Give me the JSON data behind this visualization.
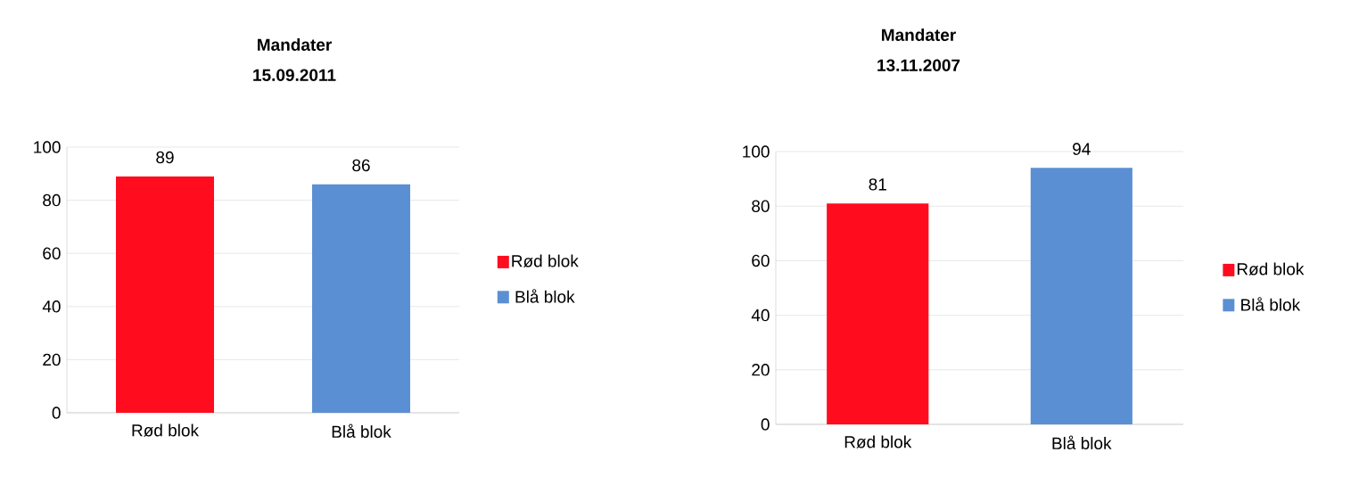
{
  "chart_data": [
    {
      "type": "bar",
      "title": "Mandater",
      "subtitle": "15.09.2011",
      "categories": [
        "Rød blok",
        "Blå blok"
      ],
      "series": [
        {
          "name": "Rød blok",
          "color": "#ff0d1f",
          "values": [
            89,
            null
          ]
        },
        {
          "name": "Blå blok",
          "color": "#5b8fd3",
          "values": [
            null,
            86
          ]
        }
      ],
      "ylim": [
        0,
        100
      ],
      "yticks": [
        0,
        20,
        40,
        60,
        80,
        100
      ],
      "grid": "y",
      "legend": "right",
      "data_labels": true
    },
    {
      "type": "bar",
      "title": "Mandater",
      "subtitle": "13.11.2007",
      "categories": [
        "Rød blok",
        "Blå blok"
      ],
      "series": [
        {
          "name": "Rød blok",
          "color": "#ff0d1f",
          "values": [
            81,
            null
          ]
        },
        {
          "name": "Blå blok",
          "color": "#5b8fd3",
          "values": [
            null,
            94
          ]
        }
      ],
      "ylim": [
        0,
        100
      ],
      "yticks": [
        0,
        20,
        40,
        60,
        80,
        100
      ],
      "grid": "y",
      "legend": "right",
      "data_labels": true
    }
  ]
}
